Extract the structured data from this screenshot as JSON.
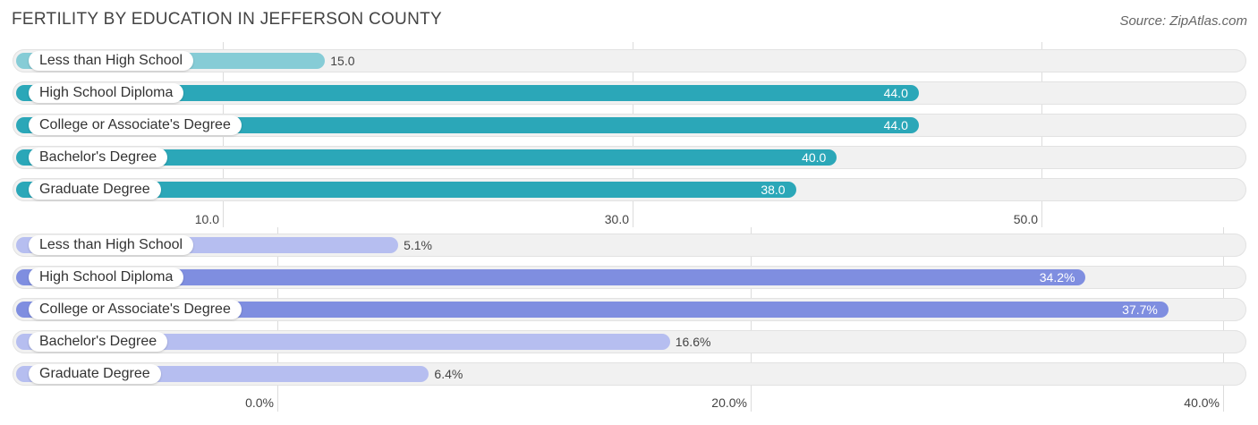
{
  "title": "FERTILITY BY EDUCATION IN JEFFERSON COUNTY",
  "source": "Source: ZipAtlas.com",
  "colors": {
    "panel1_strong": "#2ba7b8",
    "panel1_light": "#86ccd6",
    "panel2_strong": "#7f8ee0",
    "panel2_light": "#b6bef0"
  },
  "chart_data": [
    {
      "type": "bar",
      "orientation": "horizontal",
      "categories": [
        "Less than High School",
        "High School Diploma",
        "College or Associate's Degree",
        "Bachelor's Degree",
        "Graduate Degree"
      ],
      "values": [
        15.0,
        44.0,
        44.0,
        40.0,
        38.0
      ],
      "value_labels": [
        "15.0",
        "44.0",
        "44.0",
        "40.0",
        "38.0"
      ],
      "xlim": [
        0,
        60
      ],
      "ticks": [
        10.0,
        30.0,
        50.0
      ],
      "tick_labels": [
        "10.0",
        "30.0",
        "50.0"
      ],
      "grid": true
    },
    {
      "type": "bar",
      "orientation": "horizontal",
      "categories": [
        "Less than High School",
        "High School Diploma",
        "College or Associate's Degree",
        "Bachelor's Degree",
        "Graduate Degree"
      ],
      "values": [
        5.1,
        34.2,
        37.7,
        16.6,
        6.4
      ],
      "value_labels": [
        "5.1%",
        "34.2%",
        "37.7%",
        "16.6%",
        "6.4%"
      ],
      "xlim": [
        -11,
        41
      ],
      "ticks": [
        0.0,
        20.0,
        40.0
      ],
      "tick_labels": [
        "0.0%",
        "20.0%",
        "40.0%"
      ],
      "grid": true
    }
  ]
}
